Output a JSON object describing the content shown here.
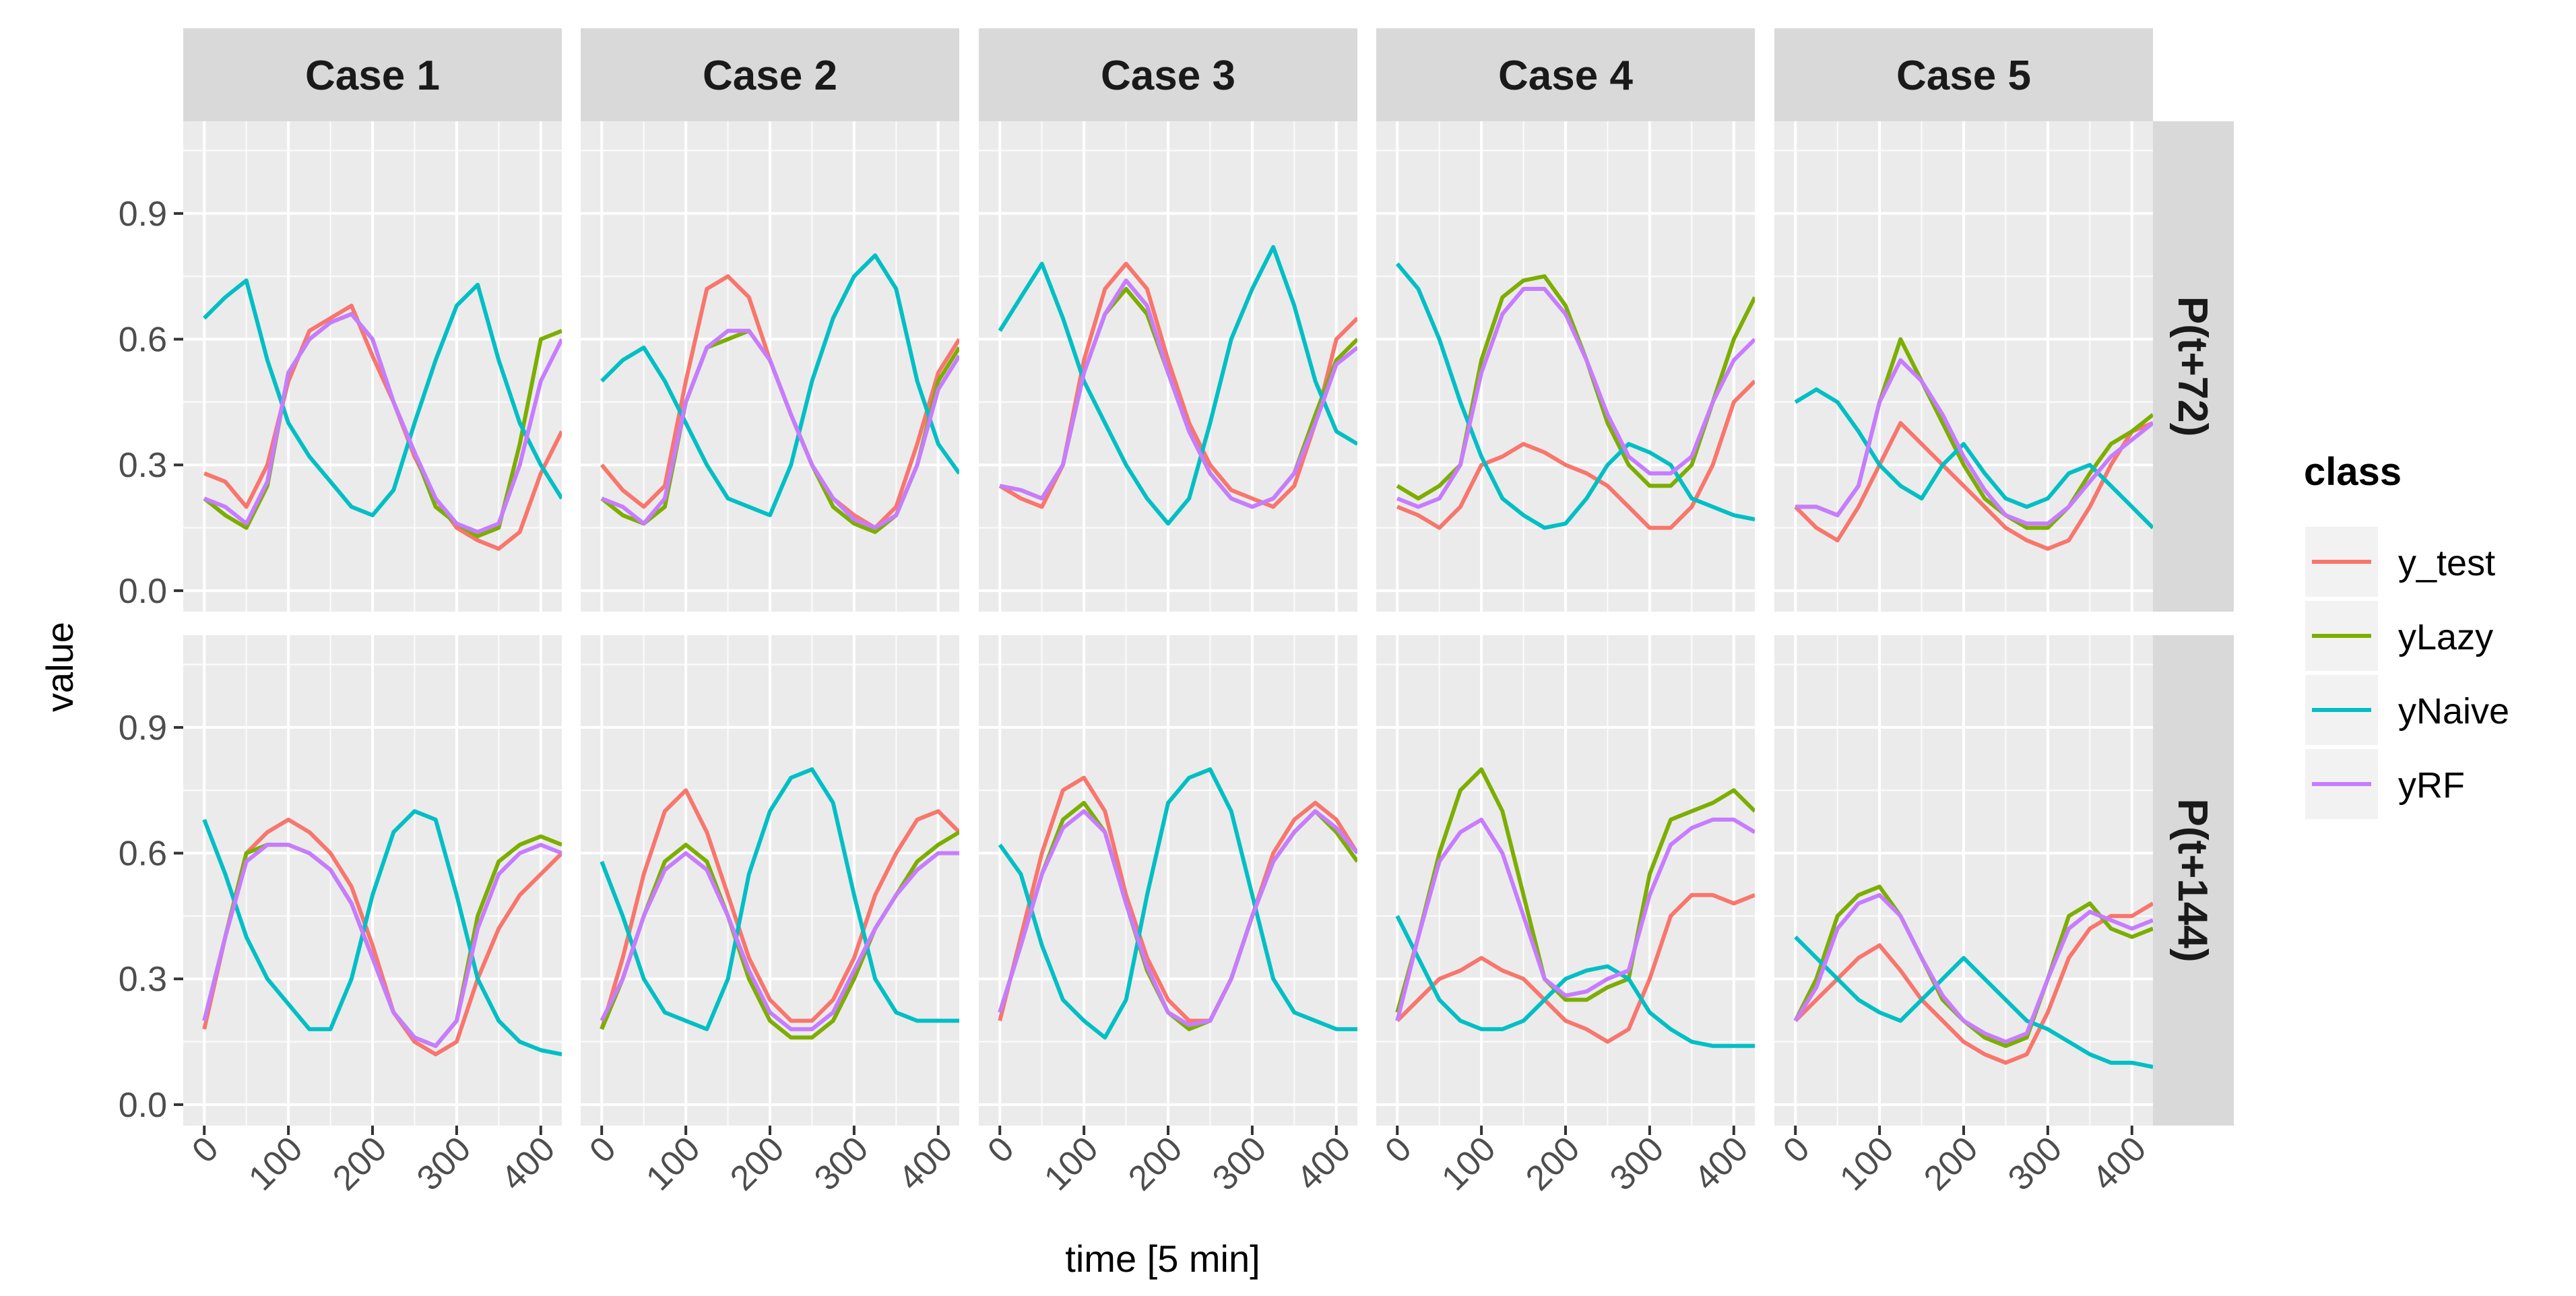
{
  "chart_data": {
    "type": "line",
    "xlabel": "time [5 min]",
    "ylabel": "value",
    "xlim": [
      -25,
      425
    ],
    "ylim": [
      -0.05,
      1.12
    ],
    "x_ticks": [
      0,
      100,
      200,
      300,
      400
    ],
    "x_tick_labels": [
      "0",
      "100",
      "200",
      "300",
      "400"
    ],
    "y_ticks": [
      0.0,
      0.3,
      0.6,
      0.9
    ],
    "y_tick_labels": [
      "0.0",
      "0.3",
      "0.6",
      "0.9"
    ],
    "grid": true,
    "facet_columns": [
      "Case 1",
      "Case 2",
      "Case 3",
      "Case 4",
      "Case 5"
    ],
    "facet_rows": [
      "P(t+72)",
      "P(t+144)"
    ],
    "legend": {
      "title": "class",
      "placement": "right",
      "entries": [
        "y_test",
        "yLazy",
        "yNaive",
        "yRF"
      ]
    },
    "colors": {
      "y_test": "#F8766D",
      "yLazy": "#7CAE00",
      "yNaive": "#00BFC4",
      "yRF": "#C77CFF"
    },
    "x": [
      0,
      25,
      50,
      75,
      100,
      125,
      150,
      175,
      200,
      225,
      250,
      275,
      300,
      325,
      350,
      375,
      400,
      425
    ],
    "panels": [
      {
        "row": "P(t+72)",
        "col": "Case 1",
        "series": [
          {
            "name": "y_test",
            "values": [
              0.28,
              0.26,
              0.2,
              0.3,
              0.5,
              0.62,
              0.65,
              0.68,
              0.56,
              0.45,
              0.32,
              0.22,
              0.15,
              0.12,
              0.1,
              0.14,
              0.28,
              0.38
            ]
          },
          {
            "name": "yLazy",
            "values": [
              0.22,
              0.18,
              0.15,
              0.25,
              0.52,
              0.6,
              0.64,
              0.66,
              0.6,
              0.45,
              0.33,
              0.2,
              0.16,
              0.13,
              0.15,
              0.35,
              0.6,
              0.62
            ]
          },
          {
            "name": "yNaive",
            "values": [
              0.65,
              0.7,
              0.74,
              0.55,
              0.4,
              0.32,
              0.26,
              0.2,
              0.18,
              0.24,
              0.4,
              0.55,
              0.68,
              0.73,
              0.55,
              0.4,
              0.3,
              0.22
            ]
          },
          {
            "name": "yRF",
            "values": [
              0.22,
              0.2,
              0.16,
              0.26,
              0.52,
              0.6,
              0.64,
              0.66,
              0.6,
              0.45,
              0.33,
              0.22,
              0.16,
              0.14,
              0.16,
              0.3,
              0.5,
              0.6
            ]
          }
        ]
      },
      {
        "row": "P(t+72)",
        "col": "Case 2",
        "series": [
          {
            "name": "y_test",
            "values": [
              0.3,
              0.24,
              0.2,
              0.25,
              0.5,
              0.72,
              0.75,
              0.7,
              0.55,
              0.42,
              0.3,
              0.22,
              0.18,
              0.15,
              0.2,
              0.35,
              0.52,
              0.6
            ]
          },
          {
            "name": "yLazy",
            "values": [
              0.22,
              0.18,
              0.16,
              0.2,
              0.45,
              0.58,
              0.6,
              0.62,
              0.55,
              0.42,
              0.3,
              0.2,
              0.16,
              0.14,
              0.18,
              0.3,
              0.5,
              0.58
            ]
          },
          {
            "name": "yNaive",
            "values": [
              0.5,
              0.55,
              0.58,
              0.5,
              0.4,
              0.3,
              0.22,
              0.2,
              0.18,
              0.3,
              0.5,
              0.65,
              0.75,
              0.8,
              0.72,
              0.5,
              0.35,
              0.28
            ]
          },
          {
            "name": "yRF",
            "values": [
              0.22,
              0.2,
              0.16,
              0.22,
              0.45,
              0.58,
              0.62,
              0.62,
              0.55,
              0.42,
              0.3,
              0.22,
              0.17,
              0.15,
              0.18,
              0.3,
              0.48,
              0.56
            ]
          }
        ]
      },
      {
        "row": "P(t+72)",
        "col": "Case 3",
        "series": [
          {
            "name": "y_test",
            "values": [
              0.25,
              0.22,
              0.2,
              0.3,
              0.55,
              0.72,
              0.78,
              0.72,
              0.55,
              0.4,
              0.3,
              0.24,
              0.22,
              0.2,
              0.25,
              0.4,
              0.6,
              0.65
            ]
          },
          {
            "name": "yLazy",
            "values": [
              0.25,
              0.24,
              0.22,
              0.3,
              0.52,
              0.66,
              0.72,
              0.66,
              0.52,
              0.38,
              0.28,
              0.22,
              0.2,
              0.22,
              0.28,
              0.42,
              0.55,
              0.6
            ]
          },
          {
            "name": "yNaive",
            "values": [
              0.62,
              0.7,
              0.78,
              0.65,
              0.5,
              0.4,
              0.3,
              0.22,
              0.16,
              0.22,
              0.4,
              0.6,
              0.72,
              0.82,
              0.68,
              0.5,
              0.38,
              0.35
            ]
          },
          {
            "name": "yRF",
            "values": [
              0.25,
              0.24,
              0.22,
              0.3,
              0.52,
              0.66,
              0.74,
              0.68,
              0.52,
              0.38,
              0.28,
              0.22,
              0.2,
              0.22,
              0.28,
              0.4,
              0.54,
              0.58
            ]
          }
        ]
      },
      {
        "row": "P(t+72)",
        "col": "Case 4",
        "series": [
          {
            "name": "y_test",
            "values": [
              0.2,
              0.18,
              0.15,
              0.2,
              0.3,
              0.32,
              0.35,
              0.33,
              0.3,
              0.28,
              0.25,
              0.2,
              0.15,
              0.15,
              0.2,
              0.3,
              0.45,
              0.5
            ]
          },
          {
            "name": "yLazy",
            "values": [
              0.25,
              0.22,
              0.25,
              0.3,
              0.55,
              0.7,
              0.74,
              0.75,
              0.68,
              0.55,
              0.4,
              0.3,
              0.25,
              0.25,
              0.3,
              0.45,
              0.6,
              0.7
            ]
          },
          {
            "name": "yNaive",
            "values": [
              0.78,
              0.72,
              0.6,
              0.45,
              0.32,
              0.22,
              0.18,
              0.15,
              0.16,
              0.22,
              0.3,
              0.35,
              0.33,
              0.3,
              0.22,
              0.2,
              0.18,
              0.17
            ]
          },
          {
            "name": "yRF",
            "values": [
              0.22,
              0.2,
              0.22,
              0.3,
              0.52,
              0.66,
              0.72,
              0.72,
              0.66,
              0.55,
              0.42,
              0.32,
              0.28,
              0.28,
              0.32,
              0.45,
              0.55,
              0.6
            ]
          }
        ]
      },
      {
        "row": "P(t+72)",
        "col": "Case 5",
        "series": [
          {
            "name": "y_test",
            "values": [
              0.2,
              0.15,
              0.12,
              0.2,
              0.3,
              0.4,
              0.35,
              0.3,
              0.25,
              0.2,
              0.15,
              0.12,
              0.1,
              0.12,
              0.2,
              0.3,
              0.38,
              0.4
            ]
          },
          {
            "name": "yLazy",
            "values": [
              0.2,
              0.2,
              0.18,
              0.25,
              0.45,
              0.6,
              0.5,
              0.4,
              0.3,
              0.22,
              0.18,
              0.15,
              0.15,
              0.2,
              0.28,
              0.35,
              0.38,
              0.42
            ]
          },
          {
            "name": "yNaive",
            "values": [
              0.45,
              0.48,
              0.45,
              0.38,
              0.3,
              0.25,
              0.22,
              0.3,
              0.35,
              0.28,
              0.22,
              0.2,
              0.22,
              0.28,
              0.3,
              0.25,
              0.2,
              0.15
            ]
          },
          {
            "name": "yRF",
            "values": [
              0.2,
              0.2,
              0.18,
              0.25,
              0.45,
              0.55,
              0.5,
              0.42,
              0.32,
              0.24,
              0.18,
              0.16,
              0.16,
              0.2,
              0.26,
              0.32,
              0.36,
              0.4
            ]
          }
        ]
      },
      {
        "row": "P(t+144)",
        "col": "Case 1",
        "series": [
          {
            "name": "y_test",
            "values": [
              0.18,
              0.4,
              0.6,
              0.65,
              0.68,
              0.65,
              0.6,
              0.52,
              0.38,
              0.22,
              0.15,
              0.12,
              0.15,
              0.3,
              0.42,
              0.5,
              0.55,
              0.6
            ]
          },
          {
            "name": "yLazy",
            "values": [
              0.2,
              0.4,
              0.6,
              0.62,
              0.62,
              0.6,
              0.56,
              0.48,
              0.35,
              0.22,
              0.16,
              0.14,
              0.2,
              0.45,
              0.58,
              0.62,
              0.64,
              0.62
            ]
          },
          {
            "name": "yNaive",
            "values": [
              0.68,
              0.55,
              0.4,
              0.3,
              0.24,
              0.18,
              0.18,
              0.3,
              0.5,
              0.65,
              0.7,
              0.68,
              0.5,
              0.3,
              0.2,
              0.15,
              0.13,
              0.12
            ]
          },
          {
            "name": "yRF",
            "values": [
              0.2,
              0.4,
              0.58,
              0.62,
              0.62,
              0.6,
              0.56,
              0.48,
              0.35,
              0.22,
              0.16,
              0.14,
              0.2,
              0.42,
              0.55,
              0.6,
              0.62,
              0.6
            ]
          }
        ]
      },
      {
        "row": "P(t+144)",
        "col": "Case 2",
        "series": [
          {
            "name": "y_test",
            "values": [
              0.18,
              0.35,
              0.55,
              0.7,
              0.75,
              0.65,
              0.5,
              0.35,
              0.25,
              0.2,
              0.2,
              0.25,
              0.35,
              0.5,
              0.6,
              0.68,
              0.7,
              0.65
            ]
          },
          {
            "name": "yLazy",
            "values": [
              0.18,
              0.3,
              0.45,
              0.58,
              0.62,
              0.58,
              0.45,
              0.3,
              0.2,
              0.16,
              0.16,
              0.2,
              0.3,
              0.42,
              0.5,
              0.58,
              0.62,
              0.65
            ]
          },
          {
            "name": "yNaive",
            "values": [
              0.58,
              0.45,
              0.3,
              0.22,
              0.2,
              0.18,
              0.3,
              0.55,
              0.7,
              0.78,
              0.8,
              0.72,
              0.5,
              0.3,
              0.22,
              0.2,
              0.2,
              0.2
            ]
          },
          {
            "name": "yRF",
            "values": [
              0.2,
              0.3,
              0.45,
              0.56,
              0.6,
              0.56,
              0.45,
              0.32,
              0.22,
              0.18,
              0.18,
              0.22,
              0.32,
              0.42,
              0.5,
              0.56,
              0.6,
              0.6
            ]
          }
        ]
      },
      {
        "row": "P(t+144)",
        "col": "Case 3",
        "series": [
          {
            "name": "y_test",
            "values": [
              0.2,
              0.4,
              0.6,
              0.75,
              0.78,
              0.7,
              0.5,
              0.35,
              0.25,
              0.2,
              0.2,
              0.3,
              0.45,
              0.6,
              0.68,
              0.72,
              0.68,
              0.6
            ]
          },
          {
            "name": "yLazy",
            "values": [
              0.22,
              0.38,
              0.55,
              0.68,
              0.72,
              0.65,
              0.48,
              0.32,
              0.22,
              0.18,
              0.2,
              0.3,
              0.45,
              0.58,
              0.65,
              0.7,
              0.65,
              0.58
            ]
          },
          {
            "name": "yNaive",
            "values": [
              0.62,
              0.55,
              0.38,
              0.25,
              0.2,
              0.16,
              0.25,
              0.5,
              0.72,
              0.78,
              0.8,
              0.7,
              0.5,
              0.3,
              0.22,
              0.2,
              0.18,
              0.18
            ]
          },
          {
            "name": "yRF",
            "values": [
              0.22,
              0.38,
              0.55,
              0.66,
              0.7,
              0.65,
              0.48,
              0.33,
              0.22,
              0.19,
              0.2,
              0.3,
              0.45,
              0.58,
              0.65,
              0.7,
              0.66,
              0.6
            ]
          }
        ]
      },
      {
        "row": "P(t+144)",
        "col": "Case 4",
        "series": [
          {
            "name": "y_test",
            "values": [
              0.2,
              0.25,
              0.3,
              0.32,
              0.35,
              0.32,
              0.3,
              0.25,
              0.2,
              0.18,
              0.15,
              0.18,
              0.3,
              0.45,
              0.5,
              0.5,
              0.48,
              0.5
            ]
          },
          {
            "name": "yLazy",
            "values": [
              0.22,
              0.4,
              0.6,
              0.75,
              0.8,
              0.7,
              0.5,
              0.3,
              0.25,
              0.25,
              0.28,
              0.3,
              0.55,
              0.68,
              0.7,
              0.72,
              0.75,
              0.7
            ]
          },
          {
            "name": "yNaive",
            "values": [
              0.45,
              0.35,
              0.25,
              0.2,
              0.18,
              0.18,
              0.2,
              0.25,
              0.3,
              0.32,
              0.33,
              0.3,
              0.22,
              0.18,
              0.15,
              0.14,
              0.14,
              0.14
            ]
          },
          {
            "name": "yRF",
            "values": [
              0.2,
              0.4,
              0.58,
              0.65,
              0.68,
              0.6,
              0.45,
              0.3,
              0.26,
              0.27,
              0.3,
              0.32,
              0.5,
              0.62,
              0.66,
              0.68,
              0.68,
              0.65
            ]
          }
        ]
      },
      {
        "row": "P(t+144)",
        "col": "Case 5",
        "series": [
          {
            "name": "y_test",
            "values": [
              0.2,
              0.25,
              0.3,
              0.35,
              0.38,
              0.32,
              0.25,
              0.2,
              0.15,
              0.12,
              0.1,
              0.12,
              0.22,
              0.35,
              0.42,
              0.45,
              0.45,
              0.48
            ]
          },
          {
            "name": "yLazy",
            "values": [
              0.2,
              0.3,
              0.45,
              0.5,
              0.52,
              0.45,
              0.35,
              0.25,
              0.2,
              0.16,
              0.14,
              0.16,
              0.3,
              0.45,
              0.48,
              0.42,
              0.4,
              0.42
            ]
          },
          {
            "name": "yNaive",
            "values": [
              0.4,
              0.35,
              0.3,
              0.25,
              0.22,
              0.2,
              0.25,
              0.3,
              0.35,
              0.3,
              0.25,
              0.2,
              0.18,
              0.15,
              0.12,
              0.1,
              0.1,
              0.09
            ]
          },
          {
            "name": "yRF",
            "values": [
              0.2,
              0.28,
              0.42,
              0.48,
              0.5,
              0.45,
              0.35,
              0.26,
              0.2,
              0.17,
              0.15,
              0.17,
              0.3,
              0.42,
              0.46,
              0.44,
              0.42,
              0.44
            ]
          }
        ]
      }
    ]
  }
}
